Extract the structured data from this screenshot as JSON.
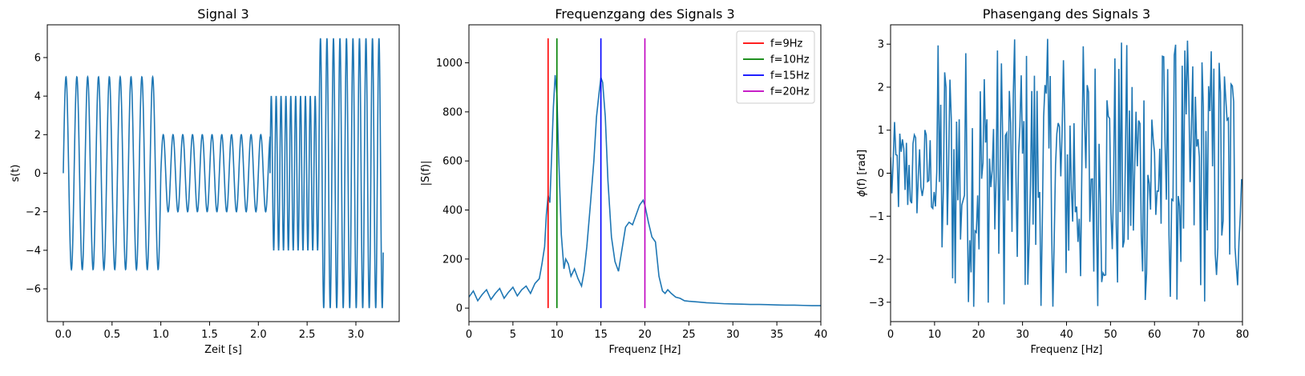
{
  "chart_data": [
    {
      "type": "line",
      "title": "Signal 3",
      "xlabel": "Zeit [s]",
      "ylabel": "s(t)",
      "xlim": [
        -0.164,
        3.444
      ],
      "ylim": [
        -7.7,
        7.7
      ],
      "xticks": [
        0.0,
        0.5,
        1.0,
        1.5,
        2.0,
        2.5,
        3.0
      ],
      "xtick_labels": [
        "0.0",
        "0.5",
        "1.0",
        "1.5",
        "2.0",
        "2.5",
        "3.0"
      ],
      "yticks": [
        -6,
        -4,
        -2,
        0,
        2,
        4,
        6
      ],
      "ytick_labels": [
        "−6",
        "−4",
        "−2",
        "0",
        "2",
        "4",
        "6"
      ],
      "color": "#1f77b4",
      "segments": [
        {
          "t_start": 0.0,
          "t_end": 1.0,
          "frequency_hz": 9,
          "amplitude": 5
        },
        {
          "t_start": 1.0,
          "t_end": 2.12,
          "frequency_hz": 10,
          "amplitude": 2
        },
        {
          "t_start": 2.12,
          "t_end": 2.62,
          "frequency_hz": 20,
          "amplitude": 4
        },
        {
          "t_start": 2.62,
          "t_end": 3.28,
          "frequency_hz": 15,
          "amplitude": 7
        }
      ]
    },
    {
      "type": "line",
      "title": "Frequenzgang des Signals 3",
      "xlabel": "Frequenz [Hz]",
      "ylabel": "|S(f)|",
      "xlim": [
        0,
        40
      ],
      "ylim": [
        -55,
        1155
      ],
      "xticks": [
        0,
        5,
        10,
        15,
        20,
        25,
        30,
        35,
        40
      ],
      "xtick_labels": [
        "0",
        "5",
        "10",
        "15",
        "20",
        "25",
        "30",
        "35",
        "40"
      ],
      "yticks": [
        0,
        200,
        400,
        600,
        800,
        1000
      ],
      "ytick_labels": [
        "0",
        "200",
        "400",
        "600",
        "800",
        "1000"
      ],
      "color": "#1f77b4",
      "x": [
        0.0,
        0.5,
        1.0,
        1.5,
        2.0,
        2.5,
        3.0,
        3.5,
        4.0,
        4.5,
        5.0,
        5.5,
        6.0,
        6.5,
        7.0,
        7.5,
        8.0,
        8.3,
        8.6,
        8.8,
        9.0,
        9.2,
        9.4,
        9.6,
        9.8,
        10.0,
        10.2,
        10.5,
        10.8,
        11.0,
        11.3,
        11.6,
        12.0,
        12.4,
        12.8,
        13.1,
        13.4,
        13.8,
        14.2,
        14.5,
        14.8,
        15.0,
        15.2,
        15.5,
        15.8,
        16.2,
        16.6,
        17.0,
        17.4,
        17.8,
        18.2,
        18.6,
        19.0,
        19.4,
        19.8,
        20.0,
        20.4,
        20.8,
        21.2,
        21.6,
        22.0,
        22.3,
        22.6,
        23.0,
        23.5,
        24.0,
        24.5,
        25.0,
        26.0,
        27.0,
        28.0,
        29.0,
        30.0,
        31.0,
        32.0,
        33.0,
        34.0,
        35.0,
        36.0,
        37.0,
        38.0,
        39.0,
        40.0
      ],
      "values": [
        45,
        70,
        30,
        55,
        75,
        35,
        60,
        80,
        40,
        65,
        85,
        50,
        75,
        90,
        60,
        100,
        120,
        180,
        250,
        380,
        460,
        430,
        620,
        820,
        950,
        870,
        620,
        300,
        160,
        200,
        180,
        130,
        160,
        120,
        90,
        150,
        250,
        420,
        600,
        780,
        880,
        940,
        920,
        780,
        520,
        290,
        190,
        150,
        240,
        330,
        350,
        340,
        380,
        420,
        440,
        420,
        350,
        290,
        270,
        130,
        70,
        60,
        75,
        60,
        45,
        40,
        30,
        28,
        25,
        22,
        20,
        18,
        17,
        16,
        15,
        15,
        14,
        13,
        12,
        12,
        11,
        10,
        10
      ],
      "vlines": [
        {
          "x": 9,
          "label": "f=9Hz",
          "color": "#ff0000"
        },
        {
          "x": 10,
          "label": "f=10Hz",
          "color": "#008000"
        },
        {
          "x": 15,
          "label": "f=15Hz",
          "color": "#0000ff"
        },
        {
          "x": 20,
          "label": "f=20Hz",
          "color": "#bf00bf"
        }
      ],
      "vline_range": [
        0,
        1100
      ],
      "legend": "top-right"
    },
    {
      "type": "line",
      "title": "Phasengang des Signals 3",
      "xlabel": "Frequenz [Hz]",
      "ylabel": "ϕ(f) [rad]",
      "xlim": [
        0,
        80
      ],
      "ylim": [
        -3.45,
        3.45
      ],
      "xticks": [
        0,
        10,
        20,
        30,
        40,
        50,
        60,
        70,
        80
      ],
      "xtick_labels": [
        "0",
        "10",
        "20",
        "30",
        "40",
        "50",
        "60",
        "70",
        "80"
      ],
      "yticks": [
        -3,
        -2,
        -1,
        0,
        1,
        2,
        3
      ],
      "ytick_labels": [
        "−3",
        "−2",
        "−1",
        "0",
        "1",
        "2",
        "3"
      ],
      "color": "#1f77b4",
      "sample_step_hz": 0.3,
      "low_band_limit_hz": 10,
      "low_band_amplitude": 1.2,
      "high_band_amplitude": 3.14
    }
  ]
}
